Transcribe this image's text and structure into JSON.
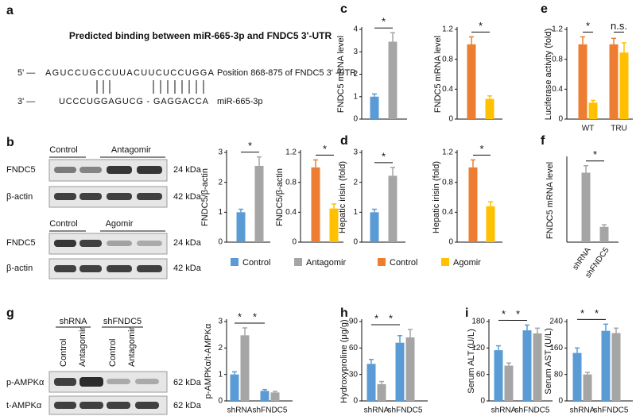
{
  "panel_labels": [
    "a",
    "b",
    "c",
    "d",
    "e",
    "f",
    "g",
    "h",
    "i"
  ],
  "binding": {
    "title": "Predicted binding between miR-665-3p and FNDC5 3'-UTR",
    "five_prime": "5' —",
    "mrna_seq": "AGUCCUGCCUUACUUCUCCUGGA",
    "mrna_note": "Position 868-875 of FNDC5 3' -UTR",
    "three_prime": "3' —",
    "mir_seq": "UCCCUGGAGUCG - GAGGACCA",
    "mir_name": "miR-665-3p"
  },
  "blots": [
    {
      "groups": [
        "Control",
        "Antagomir"
      ],
      "rows": [
        {
          "protein": "FNDC5",
          "size": "24 kDa"
        },
        {
          "protein": "β-actin",
          "size": "42 kDa"
        }
      ]
    },
    {
      "groups": [
        "Control",
        "Agomir"
      ],
      "rows": [
        {
          "protein": "FNDC5",
          "size": "24 kDa"
        },
        {
          "protein": "β-actin",
          "size": "42 kDa"
        }
      ]
    },
    {
      "groups": [
        "shRNA",
        "shFNDC5"
      ],
      "lanes": [
        "Control",
        "Antagomir",
        "Control",
        "Antagomir"
      ],
      "rows": [
        {
          "protein": "p-AMPKα",
          "size": "62 kDa"
        },
        {
          "protein": "t-AMPKα",
          "size": "62 kDa"
        }
      ]
    }
  ],
  "legend": [
    {
      "name": "Control",
      "color": "#5b9bd5"
    },
    {
      "name": "Antagomir",
      "color": "#a5a5a5"
    },
    {
      "name": "Control",
      "color": "#ed7d31"
    },
    {
      "name": "Agomir",
      "color": "#ffc000"
    }
  ],
  "chart_data": [
    {
      "type": "bar",
      "ylabel": "FNDC5 mRNA level",
      "ylim": [
        0,
        4
      ],
      "yticks": [
        0,
        1,
        2,
        3,
        4
      ],
      "series": [
        {
          "color": "#5b9bd5",
          "values": [
            1.0
          ],
          "errors": [
            0.12
          ]
        },
        {
          "color": "#a5a5a5",
          "values": [
            3.45
          ],
          "errors": [
            0.4
          ]
        }
      ],
      "annotations": [
        "*"
      ]
    },
    {
      "type": "bar",
      "ylabel": "FNDC5 mRNA level",
      "ylim": [
        0,
        1.2
      ],
      "yticks": [
        0,
        0.4,
        0.8,
        1.2
      ],
      "series": [
        {
          "color": "#ed7d31",
          "values": [
            1.0
          ],
          "errors": [
            0.1
          ]
        },
        {
          "color": "#ffc000",
          "values": [
            0.27
          ],
          "errors": [
            0.04
          ]
        }
      ],
      "annotations": [
        "*"
      ]
    },
    {
      "type": "bar",
      "ylabel": "Luciferase activity (fold)",
      "ylim": [
        0,
        1.2
      ],
      "yticks": [
        0,
        0.4,
        0.8,
        1.2
      ],
      "categories": [
        "WT",
        "TRU"
      ],
      "series": [
        {
          "color": "#ed7d31",
          "values": [
            1.0,
            1.0
          ],
          "errors": [
            0.1,
            0.08
          ]
        },
        {
          "color": "#ffc000",
          "values": [
            0.22,
            0.89
          ],
          "errors": [
            0.03,
            0.13
          ]
        }
      ],
      "annotations": [
        "*",
        "n.s."
      ]
    },
    {
      "type": "bar",
      "ylabel": "FNDC5/β-actin",
      "ylim": [
        0,
        3
      ],
      "yticks": [
        0,
        1,
        2,
        3
      ],
      "series": [
        {
          "color": "#5b9bd5",
          "values": [
            1.0
          ],
          "errors": [
            0.1
          ]
        },
        {
          "color": "#a5a5a5",
          "values": [
            2.55
          ],
          "errors": [
            0.3
          ]
        }
      ],
      "annotations": [
        "*"
      ]
    },
    {
      "type": "bar",
      "ylabel": "FNDC5/β-actin",
      "ylim": [
        0,
        1.2
      ],
      "yticks": [
        0,
        0.4,
        0.8,
        1.2
      ],
      "series": [
        {
          "color": "#ed7d31",
          "values": [
            1.0
          ],
          "errors": [
            0.1
          ]
        },
        {
          "color": "#ffc000",
          "values": [
            0.45
          ],
          "errors": [
            0.06
          ]
        }
      ],
      "annotations": [
        "*"
      ]
    },
    {
      "type": "bar",
      "ylabel": "Hepatic irisin (fold)",
      "ylim": [
        0,
        3
      ],
      "yticks": [
        0,
        1,
        2,
        3
      ],
      "series": [
        {
          "color": "#5b9bd5",
          "values": [
            1.0
          ],
          "errors": [
            0.1
          ]
        },
        {
          "color": "#a5a5a5",
          "values": [
            2.22
          ],
          "errors": [
            0.28
          ]
        }
      ],
      "annotations": [
        "*"
      ]
    },
    {
      "type": "bar",
      "ylabel": "Hepatic irisin (fold)",
      "ylim": [
        0,
        1.2
      ],
      "yticks": [
        0,
        0.4,
        0.8,
        1.2
      ],
      "series": [
        {
          "color": "#ed7d31",
          "values": [
            1.0
          ],
          "errors": [
            0.1
          ]
        },
        {
          "color": "#ffc000",
          "values": [
            0.48
          ],
          "errors": [
            0.06
          ]
        }
      ],
      "annotations": [
        "*"
      ]
    },
    {
      "type": "bar",
      "ylabel": "FNDC5 mRNA level",
      "ylim": [
        0,
        1.2
      ],
      "categories": [
        "shRNA",
        "shFNDC5"
      ],
      "series": [
        {
          "color": "#a5a5a5",
          "values": [
            1.0,
            0.22
          ],
          "errors": [
            0.1,
            0.03
          ]
        }
      ],
      "annotations": [
        "*"
      ]
    },
    {
      "type": "bar",
      "ylabel": "p-AMPKα/t-AMPKα",
      "ylim": [
        0,
        3
      ],
      "yticks": [
        0,
        1,
        2,
        3
      ],
      "categories": [
        "shRNA",
        "shFNDC5"
      ],
      "series": [
        {
          "color": "#5b9bd5",
          "values": [
            1.0,
            0.38
          ],
          "errors": [
            0.1,
            0.05
          ]
        },
        {
          "color": "#a5a5a5",
          "values": [
            2.48,
            0.32
          ],
          "errors": [
            0.28,
            0.04
          ]
        }
      ],
      "annotations": [
        "*",
        "*"
      ]
    },
    {
      "type": "bar",
      "ylabel": "Hydroxyproline (μg/g)",
      "ylim": [
        0,
        90
      ],
      "yticks": [
        0,
        30,
        60,
        90
      ],
      "categories": [
        "shRNA",
        "shFNDC5"
      ],
      "series": [
        {
          "color": "#5b9bd5",
          "values": [
            42,
            66
          ],
          "errors": [
            5,
            8
          ]
        },
        {
          "color": "#a5a5a5",
          "values": [
            19,
            72
          ],
          "errors": [
            3,
            9
          ]
        }
      ],
      "annotations": [
        "*",
        "*"
      ]
    },
    {
      "type": "bar",
      "ylabel": "Serum ALT (U/L)",
      "ylim": [
        0,
        180
      ],
      "yticks": [
        0,
        60,
        120,
        180
      ],
      "categories": [
        "shRNA",
        "shFNDC5"
      ],
      "series": [
        {
          "color": "#5b9bd5",
          "values": [
            115,
            160
          ],
          "errors": [
            10,
            12
          ]
        },
        {
          "color": "#a5a5a5",
          "values": [
            80,
            153
          ],
          "errors": [
            6,
            12
          ]
        }
      ],
      "annotations": [
        "*",
        "*"
      ]
    },
    {
      "type": "bar",
      "ylabel": "Serum AST (U/L)",
      "ylim": [
        0,
        240
      ],
      "yticks": [
        0,
        80,
        160,
        240
      ],
      "categories": [
        "shRNA",
        "shFNDC5"
      ],
      "series": [
        {
          "color": "#5b9bd5",
          "values": [
            145,
            212
          ],
          "errors": [
            15,
            20
          ]
        },
        {
          "color": "#a5a5a5",
          "values": [
            80,
            205
          ],
          "errors": [
            6,
            15
          ]
        }
      ],
      "annotations": [
        "*",
        "*"
      ]
    }
  ]
}
